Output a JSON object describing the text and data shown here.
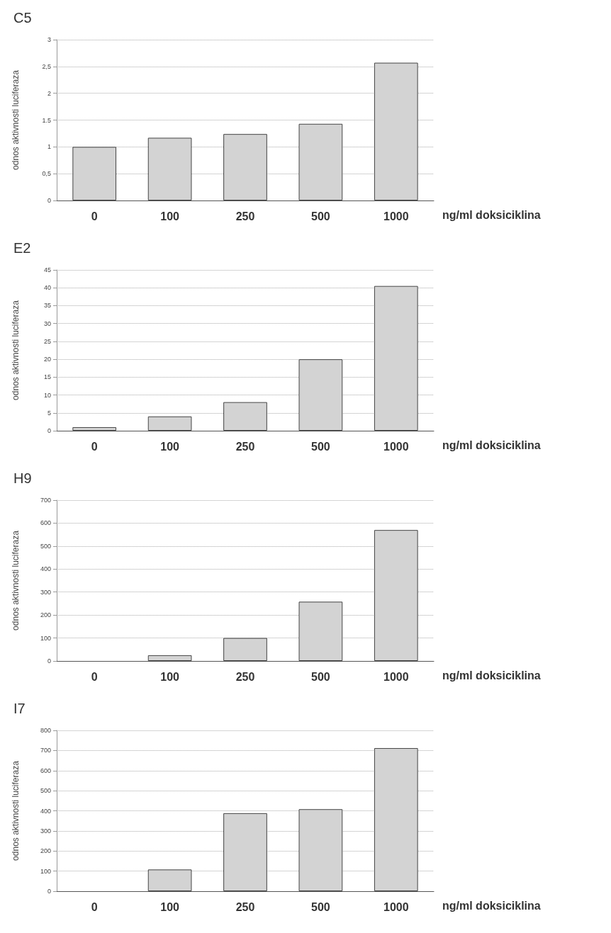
{
  "chart_data": [
    {
      "type": "bar",
      "title": "C5",
      "ylabel": "odnos aktivnosti luciferaza",
      "xlabel": "ng/ml doksiciklina",
      "categories": [
        "0",
        "100",
        "250",
        "500",
        "1000"
      ],
      "values": [
        1,
        1.17,
        1.24,
        1.43,
        2.57
      ],
      "color": "#d3d3d3",
      "ylim": [
        0,
        3
      ],
      "yticks": [
        0,
        {
          "value": 0.5,
          "label": "0,5"
        },
        1,
        {
          "value": 1.5,
          "label": "1.5"
        },
        2,
        {
          "value": 2.5,
          "label": "2,5"
        },
        3
      ],
      "grid": "y"
    },
    {
      "type": "bar",
      "title": "E2",
      "ylabel": "odnos aktivnosti luciferaza",
      "xlabel": "ng/ml doksiciklina",
      "categories": [
        "0",
        "100",
        "250",
        "500",
        "1000"
      ],
      "values": [
        1,
        4,
        8,
        20,
        40.5
      ],
      "color": "#d3d3d3",
      "ylim": [
        0,
        45
      ],
      "yticks": [
        0,
        5,
        10,
        15,
        20,
        25,
        30,
        35,
        40,
        45
      ],
      "grid": "y"
    },
    {
      "type": "bar",
      "title": "H9",
      "ylabel": "odnos aktivnosti luciferaza",
      "xlabel": "ng/ml doksiciklina",
      "categories": [
        "0",
        "100",
        "250",
        "500",
        "1000"
      ],
      "values": [
        null,
        25,
        100,
        258,
        570
      ],
      "color": "#d3d3d3",
      "ylim": [
        0,
        700
      ],
      "yticks": [
        0,
        100,
        200,
        300,
        400,
        500,
        600,
        700
      ],
      "grid": "y"
    },
    {
      "type": "bar",
      "title": "I7",
      "ylabel": "odnos aktivnosti luciferaza",
      "xlabel": "ng/ml doksiciklina",
      "categories": [
        "0",
        "100",
        "250",
        "500",
        "1000"
      ],
      "values": [
        null,
        108,
        388,
        408,
        712
      ],
      "color": "#d3d3d3",
      "ylim": [
        0,
        800
      ],
      "yticks": [
        0,
        100,
        200,
        300,
        400,
        500,
        600,
        700,
        800
      ],
      "grid": "y"
    }
  ]
}
